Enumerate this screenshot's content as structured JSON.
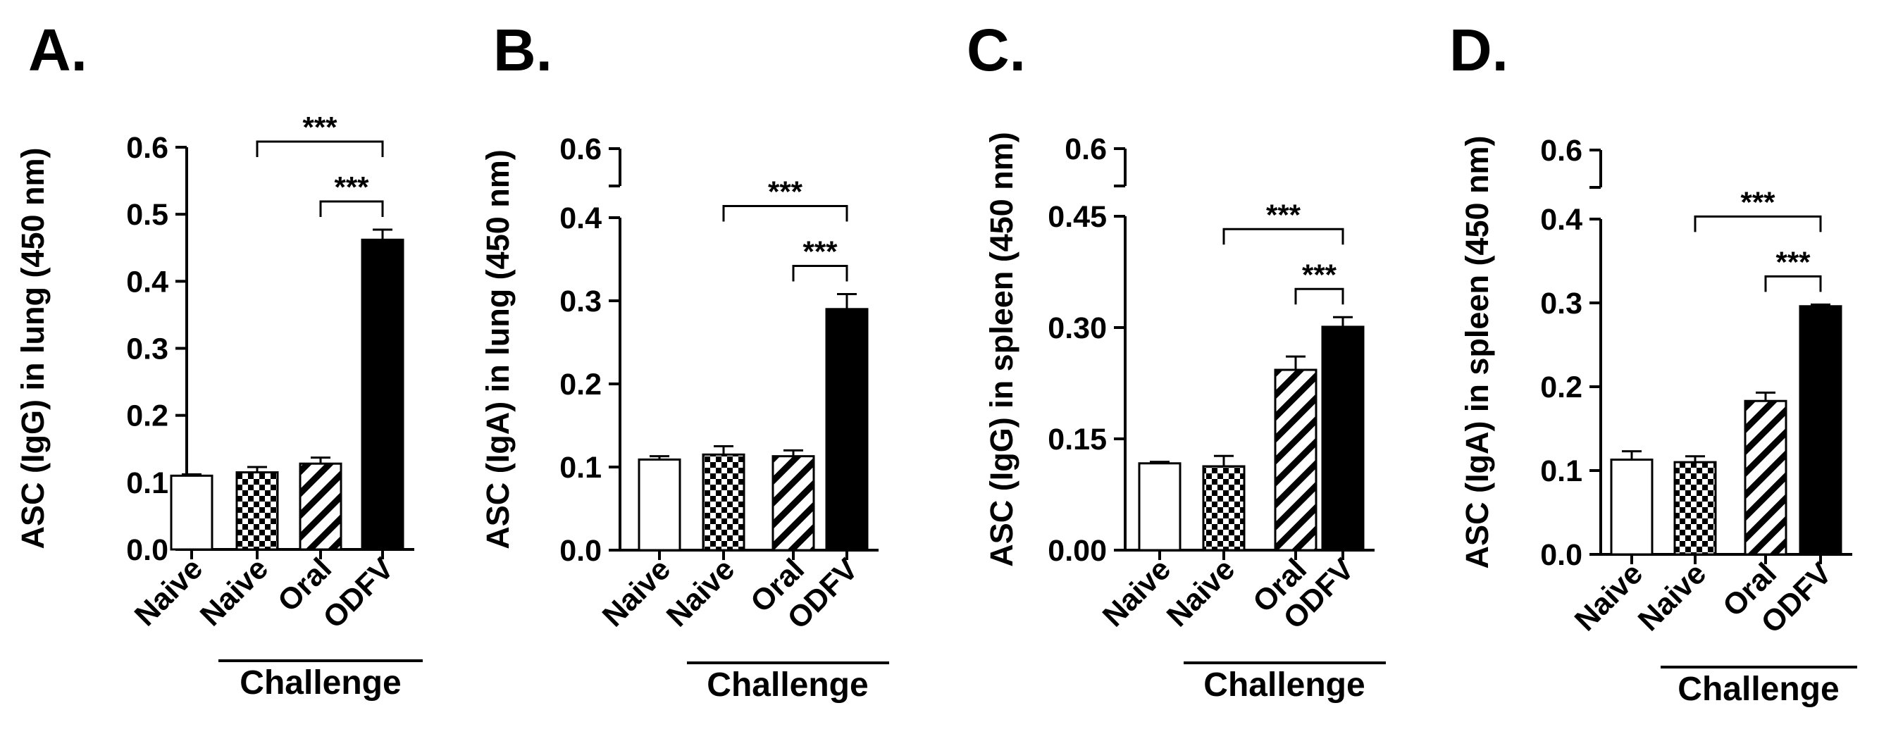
{
  "colors": {
    "ink": "#000000",
    "background": "#ffffff",
    "open_fill": "#ffffff",
    "solid_fill": "#000000"
  },
  "chart_data": [
    {
      "type": "bar",
      "panel": "A.",
      "ylabel": "ASC (IgG) in lung (450 nm)",
      "ylim": [
        0,
        0.6
      ],
      "yticks": [
        "0.0",
        "0.1",
        "0.2",
        "0.3",
        "0.4",
        "0.5",
        "0.6"
      ],
      "axis_break": null,
      "categories": [
        "Naive",
        "Naive",
        "Oral",
        "ODFV"
      ],
      "fills": [
        "open",
        "checker",
        "hatch",
        "solid"
      ],
      "values": [
        0.11,
        0.115,
        0.128,
        0.462
      ],
      "errors": [
        0.002,
        0.008,
        0.009,
        0.015
      ],
      "group_label": "Challenge",
      "group_span": [
        1,
        3
      ],
      "significance": [
        {
          "from": 1,
          "to": 3,
          "label": "***"
        },
        {
          "from": 2,
          "to": 3,
          "label": "***"
        }
      ]
    },
    {
      "type": "bar",
      "panel": "B.",
      "ylabel": "ASC (IgA) in lung (450 nm)",
      "ylim": [
        0,
        0.6
      ],
      "yticks": [
        "0.0",
        "0.1",
        "0.2",
        "0.3",
        "0.4",
        "0.6"
      ],
      "axis_break": [
        0.4,
        0.6
      ],
      "categories": [
        "Naive",
        "Naive",
        "Oral",
        "ODFV"
      ],
      "fills": [
        "open",
        "checker",
        "hatch",
        "solid"
      ],
      "values": [
        0.109,
        0.115,
        0.113,
        0.29
      ],
      "errors": [
        0.004,
        0.01,
        0.007,
        0.018
      ],
      "group_label": "Challenge",
      "group_span": [
        1,
        3
      ],
      "significance": [
        {
          "from": 1,
          "to": 3,
          "label": "***"
        },
        {
          "from": 2,
          "to": 3,
          "label": "***"
        }
      ]
    },
    {
      "type": "bar",
      "panel": "C.",
      "ylabel": "ASC (IgG) in spleen (450 nm)",
      "ylim": [
        0,
        0.6
      ],
      "yticks": [
        "0.00",
        "0.15",
        "0.30",
        "0.45",
        "0.6"
      ],
      "axis_break": [
        0.45,
        0.6
      ],
      "categories": [
        "Naive",
        "Naive",
        "Oral",
        "ODFV"
      ],
      "fills": [
        "open",
        "checker",
        "hatch",
        "solid"
      ],
      "values": [
        0.117,
        0.113,
        0.243,
        0.301
      ],
      "errors": [
        0.002,
        0.014,
        0.018,
        0.013
      ],
      "group_label": "Challenge",
      "group_span": [
        1,
        3
      ],
      "significance": [
        {
          "from": 1,
          "to": 3,
          "label": "***"
        },
        {
          "from": 2,
          "to": 3,
          "label": "***"
        }
      ]
    },
    {
      "type": "bar",
      "panel": "D.",
      "ylabel": "ASC (IgA) in spleen (450 nm)",
      "ylim": [
        0,
        0.6
      ],
      "yticks": [
        "0.0",
        "0.1",
        "0.2",
        "0.3",
        "0.4",
        "0.6"
      ],
      "axis_break": [
        0.4,
        0.6
      ],
      "categories": [
        "Naive",
        "Naive",
        "Oral",
        "ODFV"
      ],
      "fills": [
        "open",
        "checker",
        "hatch",
        "solid"
      ],
      "values": [
        0.113,
        0.11,
        0.183,
        0.296
      ],
      "errors": [
        0.01,
        0.007,
        0.01,
        0.002
      ],
      "group_label": "Challenge",
      "group_span": [
        1,
        3
      ],
      "significance": [
        {
          "from": 1,
          "to": 3,
          "label": "***"
        },
        {
          "from": 2,
          "to": 3,
          "label": "***"
        }
      ]
    }
  ]
}
